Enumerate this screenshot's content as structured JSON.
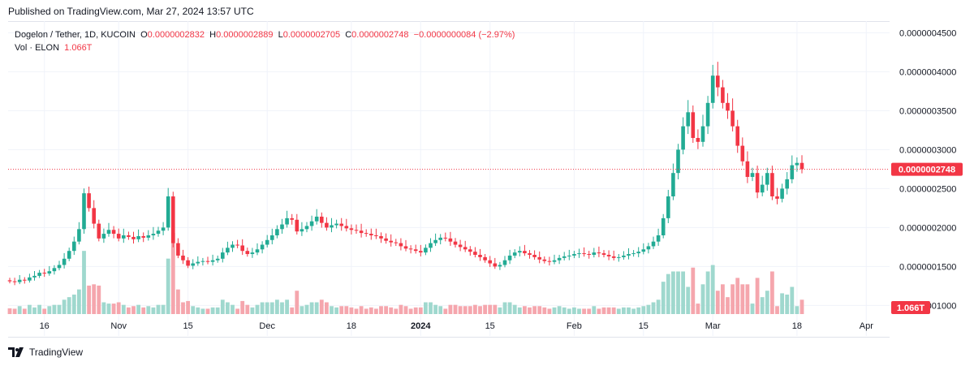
{
  "published": "Published on TradingView.com, Mar 27, 2024 13:57 UTC",
  "legend": {
    "symbol": "Dogelon / Tether, 1D, KUCOIN",
    "o_label": "O",
    "o_value": "0.0000002832",
    "h_label": "H",
    "h_value": "0.0000002889",
    "l_label": "L",
    "l_value": "0.0000002705",
    "c_label": "C",
    "c_value": "0.0000002748",
    "change": "−0.0000000084 (−2.97%)",
    "vol_label": "Vol · ELON",
    "vol_value": "1.066T"
  },
  "brand": "TradingView",
  "colors": {
    "up": "#22ab94",
    "down": "#f23645",
    "up_vol": "#9fd8ce",
    "down_vol": "#f5a6ad",
    "grid": "#f0f3fa",
    "axis_text": "#131722"
  },
  "chart_data": {
    "type": "candlestick",
    "title": "Dogelon / Tether, 1D, KUCOIN",
    "ylim": [
      9e-08,
      4.65e-07
    ],
    "y_ticks": [
      {
        "value": 4.5e-07,
        "label": "0.0000004500"
      },
      {
        "value": 4e-07,
        "label": "0.0000004000"
      },
      {
        "value": 3.5e-07,
        "label": "0.0000003500"
      },
      {
        "value": 3e-07,
        "label": "0.0000003000"
      },
      {
        "value": 2.5e-07,
        "label": "0.0000002500"
      },
      {
        "value": 2e-07,
        "label": "0.0000002000"
      },
      {
        "value": 1.5e-07,
        "label": "0.0000001500"
      },
      {
        "value": 1e-07,
        "label": "0.0000001000"
      }
    ],
    "x_ticks": [
      {
        "index": 7,
        "label": "16",
        "bold": false
      },
      {
        "index": 22,
        "label": "Nov",
        "bold": false
      },
      {
        "index": 36,
        "label": "15",
        "bold": false
      },
      {
        "index": 52,
        "label": "Dec",
        "bold": false
      },
      {
        "index": 69,
        "label": "18",
        "bold": false
      },
      {
        "index": 83,
        "label": "2024",
        "bold": true
      },
      {
        "index": 97,
        "label": "15",
        "bold": false
      },
      {
        "index": 114,
        "label": "Feb",
        "bold": false
      },
      {
        "index": 128,
        "label": "15",
        "bold": false
      },
      {
        "index": 142,
        "label": "Mar",
        "bold": false
      },
      {
        "index": 159,
        "label": "18",
        "bold": false
      },
      {
        "index": 173,
        "label": "Apr",
        "bold": false
      }
    ],
    "last_price": {
      "value": 2.748e-07,
      "label": "0.0000002748"
    },
    "last_volume_label": "1.066T",
    "close_series": [
      1.31e-07,
      1.3e-07,
      1.33e-07,
      1.32e-07,
      1.36e-07,
      1.38e-07,
      1.42e-07,
      1.41e-07,
      1.44e-07,
      1.48e-07,
      1.52e-07,
      1.6e-07,
      1.7e-07,
      1.82e-07,
      1.98e-07,
      2.44e-07,
      2.25e-07,
      2.05e-07,
      1.86e-07,
      1.92e-07,
      1.97e-07,
      1.92e-07,
      1.86e-07,
      1.9e-07,
      1.88e-07,
      1.85e-07,
      1.89e-07,
      1.87e-07,
      1.9e-07,
      1.92e-07,
      1.96e-07,
      2e-07,
      2.4e-07,
      1.8e-07,
      1.64e-07,
      1.58e-07,
      1.51e-07,
      1.54e-07,
      1.56e-07,
      1.57e-07,
      1.56e-07,
      1.58e-07,
      1.6e-07,
      1.68e-07,
      1.74e-07,
      1.78e-07,
      1.77e-07,
      1.7e-07,
      1.66e-07,
      1.68e-07,
      1.72e-07,
      1.78e-07,
      1.84e-07,
      1.9e-07,
      1.98e-07,
      2.04e-07,
      2.12e-07,
      2.1e-07,
      1.95e-07,
      1.98e-07,
      2.02e-07,
      2.08e-07,
      2.14e-07,
      2.06e-07,
      2e-07,
      2.03e-07,
      2.05e-07,
      2.02e-07,
      1.99e-07,
      1.97e-07,
      1.96e-07,
      1.93e-07,
      1.92e-07,
      1.9e-07,
      1.89e-07,
      1.86e-07,
      1.83e-07,
      1.81e-07,
      1.8e-07,
      1.76e-07,
      1.73e-07,
      1.72e-07,
      1.7e-07,
      1.68e-07,
      1.74e-07,
      1.8e-07,
      1.84e-07,
      1.87e-07,
      1.86e-07,
      1.82e-07,
      1.78e-07,
      1.75e-07,
      1.72e-07,
      1.69e-07,
      1.65e-07,
      1.62e-07,
      1.58e-07,
      1.54e-07,
      1.5e-07,
      1.52e-07,
      1.58e-07,
      1.64e-07,
      1.68e-07,
      1.7e-07,
      1.67e-07,
      1.65e-07,
      1.62e-07,
      1.59e-07,
      1.57e-07,
      1.56e-07,
      1.58e-07,
      1.61e-07,
      1.63e-07,
      1.64e-07,
      1.66e-07,
      1.67e-07,
      1.66e-07,
      1.65e-07,
      1.68e-07,
      1.67e-07,
      1.65e-07,
      1.63e-07,
      1.61e-07,
      1.62e-07,
      1.64e-07,
      1.66e-07,
      1.67e-07,
      1.69e-07,
      1.72e-07,
      1.76e-07,
      1.82e-07,
      1.9e-07,
      2.12e-07,
      2.4e-07,
      2.7e-07,
      3e-07,
      3.3e-07,
      3.48e-07,
      3.15e-07,
      3.1e-07,
      3.3e-07,
      3.6e-07,
      3.95e-07,
      3.8e-07,
      3.6e-07,
      3.5e-07,
      3.3e-07,
      3.05e-07,
      2.85e-07,
      2.65e-07,
      2.7e-07,
      2.45e-07,
      2.55e-07,
      2.7e-07,
      2.4e-07,
      2.37e-07,
      2.5e-07,
      2.62e-07,
      2.8e-07,
      2.83e-07,
      2.75e-07
    ]
  }
}
